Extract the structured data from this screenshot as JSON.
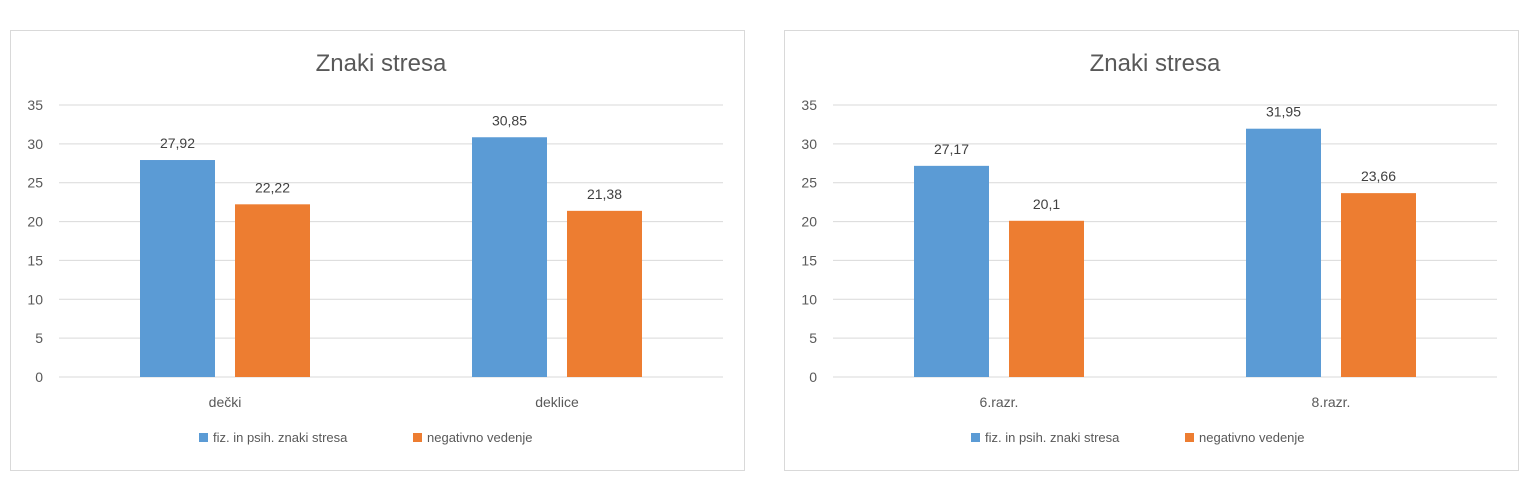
{
  "chart_data": [
    {
      "type": "bar",
      "title": "Znaki stresa",
      "categories": [
        "dečki",
        "deklice"
      ],
      "series": [
        {
          "name": "fiz. in psih. znaki stresa",
          "values": [
            27.92,
            30.85
          ],
          "labels": [
            "27,92",
            "30,85"
          ],
          "color": "#5B9BD5"
        },
        {
          "name": "negativno vedenje",
          "values": [
            22.22,
            21.38
          ],
          "labels": [
            "22,22",
            "21,38"
          ],
          "color": "#ED7D31"
        }
      ],
      "ylim": [
        0,
        35
      ],
      "yticks": [
        "0",
        "5",
        "10",
        "15",
        "20",
        "25",
        "30",
        "35"
      ],
      "grid": true,
      "legend": "bottom"
    },
    {
      "type": "bar",
      "title": "Znaki stresa",
      "categories": [
        "6.razr.",
        "8.razr."
      ],
      "series": [
        {
          "name": "fiz. in psih. znaki stresa",
          "values": [
            27.17,
            31.95
          ],
          "labels": [
            "27,17",
            "31,95"
          ],
          "color": "#5B9BD5"
        },
        {
          "name": "negativno vedenje",
          "values": [
            20.1,
            23.66
          ],
          "labels": [
            "20,1",
            "23,66"
          ],
          "color": "#ED7D31"
        }
      ],
      "ylim": [
        0,
        35
      ],
      "yticks": [
        "0",
        "5",
        "10",
        "15",
        "20",
        "25",
        "30",
        "35"
      ],
      "grid": true,
      "legend": "bottom"
    }
  ]
}
